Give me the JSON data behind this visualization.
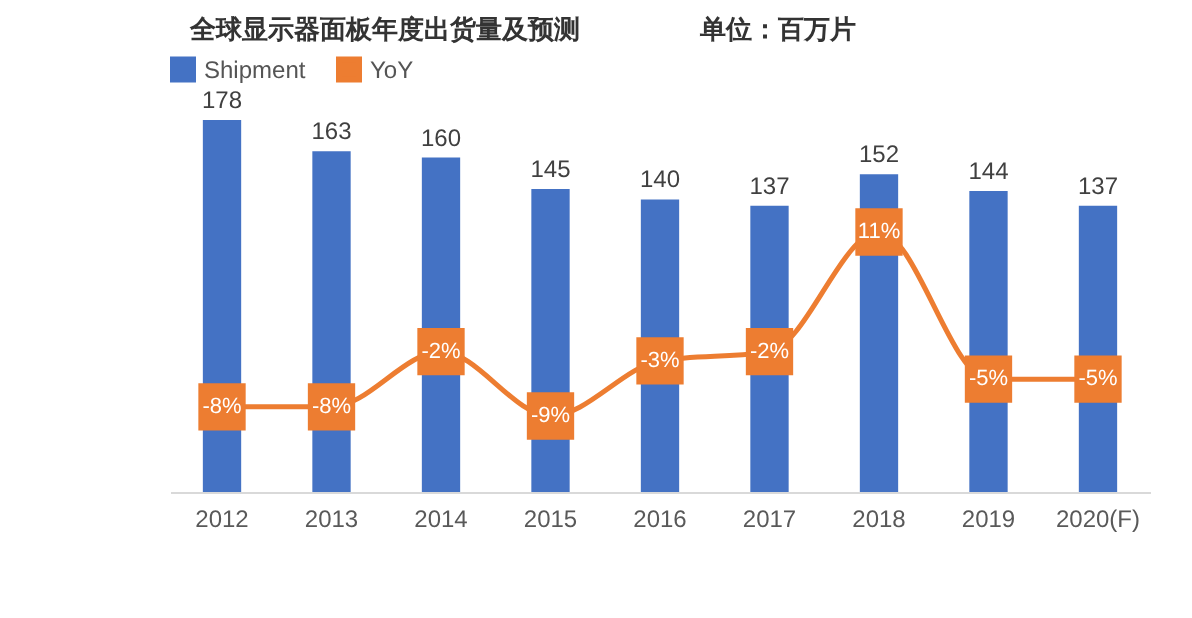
{
  "chart_data": {
    "type": "bar",
    "title": "全球显示器面板年度出货量及预测",
    "subtitle": "单位：百万片",
    "categories": [
      "2012",
      "2013",
      "2014",
      "2015",
      "2016",
      "2017",
      "2018",
      "2019",
      "2020(F)"
    ],
    "series": [
      {
        "name": "Shipment",
        "color": "#4472c4",
        "values": [
          178,
          163,
          160,
          145,
          140,
          137,
          152,
          144,
          137
        ]
      },
      {
        "name": "YoY",
        "type": "line",
        "axis": "y2",
        "color": "#ed7d31",
        "values": [
          -8,
          -8,
          -2,
          -9,
          -3,
          -2,
          11,
          -5,
          -5
        ],
        "value_labels": [
          "-8%",
          "-8%",
          "-2%",
          "-9%",
          "-3%",
          "-2%",
          "11%",
          "-5%",
          "-5%"
        ]
      }
    ],
    "data_labels": true,
    "marker": "square",
    "line_style": "solid",
    "legend": "top",
    "grid": false,
    "tick_labels": "x"
  }
}
